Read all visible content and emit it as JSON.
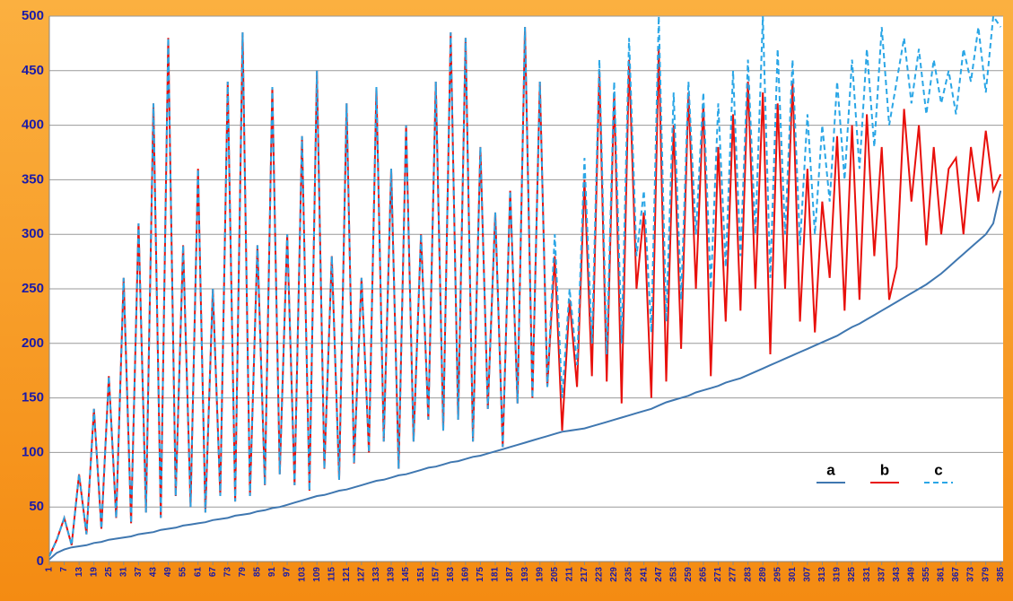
{
  "chart_data": {
    "type": "line",
    "x": [
      1,
      4,
      7,
      10,
      13,
      16,
      19,
      22,
      25,
      28,
      31,
      34,
      37,
      40,
      43,
      46,
      49,
      52,
      55,
      58,
      61,
      64,
      67,
      70,
      73,
      76,
      79,
      82,
      85,
      88,
      91,
      94,
      97,
      100,
      103,
      106,
      109,
      112,
      115,
      118,
      121,
      124,
      127,
      130,
      133,
      136,
      139,
      142,
      145,
      148,
      151,
      154,
      157,
      160,
      163,
      166,
      169,
      172,
      175,
      178,
      181,
      184,
      187,
      190,
      193,
      196,
      199,
      202,
      205,
      208,
      211,
      214,
      217,
      220,
      223,
      226,
      229,
      232,
      235,
      238,
      241,
      244,
      247,
      250,
      253,
      256,
      259,
      262,
      265,
      268,
      271,
      274,
      277,
      280,
      283,
      286,
      289,
      292,
      295,
      298,
      301,
      304,
      307,
      310,
      313,
      316,
      319,
      322,
      325,
      328,
      331,
      334,
      337,
      340,
      343,
      346,
      349,
      352,
      355,
      358,
      361,
      364,
      367,
      370,
      373,
      376,
      379,
      382,
      385
    ],
    "xlim": [
      1,
      386
    ],
    "xticks": [
      1,
      7,
      13,
      19,
      25,
      31,
      37,
      43,
      49,
      55,
      61,
      67,
      73,
      79,
      85,
      91,
      97,
      103,
      109,
      115,
      121,
      127,
      133,
      139,
      145,
      151,
      157,
      163,
      169,
      175,
      181,
      187,
      193,
      199,
      205,
      211,
      217,
      223,
      229,
      235,
      241,
      247,
      253,
      259,
      265,
      271,
      277,
      283,
      289,
      295,
      301,
      307,
      313,
      319,
      325,
      331,
      337,
      343,
      349,
      355,
      361,
      367,
      373,
      379,
      385
    ],
    "ylim": [
      0,
      500
    ],
    "yticks": [
      0,
      50,
      100,
      150,
      200,
      250,
      300,
      350,
      400,
      450,
      500
    ],
    "grid": true,
    "series": [
      {
        "name": "a",
        "color": "#3f77b0",
        "dash": false,
        "values": [
          2,
          8,
          11,
          13,
          14,
          15,
          17,
          18,
          20,
          21,
          22,
          23,
          25,
          26,
          27,
          29,
          30,
          31,
          33,
          34,
          35,
          36,
          38,
          39,
          40,
          42,
          43,
          44,
          46,
          47,
          49,
          50,
          52,
          54,
          56,
          58,
          60,
          61,
          63,
          65,
          66,
          68,
          70,
          72,
          74,
          75,
          77,
          79,
          80,
          82,
          84,
          86,
          87,
          89,
          91,
          92,
          94,
          96,
          97,
          99,
          101,
          103,
          105,
          107,
          109,
          111,
          113,
          115,
          117,
          119,
          120,
          121,
          122,
          124,
          126,
          128,
          130,
          132,
          134,
          136,
          138,
          140,
          143,
          146,
          148,
          150,
          152,
          155,
          157,
          159,
          161,
          164,
          166,
          168,
          171,
          174,
          177,
          180,
          183,
          186,
          189,
          192,
          195,
          198,
          201,
          204,
          207,
          211,
          215,
          218,
          222,
          226,
          230,
          234,
          238,
          242,
          246,
          250,
          254,
          259,
          264,
          270,
          276,
          282,
          288,
          294,
          300,
          310,
          340
        ]
      },
      {
        "name": "b",
        "color": "#e8100c",
        "dash": false,
        "values": [
          5,
          20,
          40,
          15,
          80,
          25,
          140,
          30,
          170,
          40,
          260,
          35,
          310,
          45,
          420,
          40,
          480,
          60,
          290,
          50,
          360,
          45,
          250,
          60,
          440,
          55,
          485,
          60,
          290,
          70,
          435,
          80,
          300,
          70,
          390,
          65,
          450,
          85,
          280,
          75,
          420,
          90,
          260,
          100,
          435,
          110,
          360,
          85,
          400,
          110,
          300,
          130,
          440,
          120,
          485,
          130,
          480,
          110,
          380,
          140,
          320,
          105,
          340,
          145,
          490,
          150,
          440,
          160,
          280,
          120,
          240,
          160,
          350,
          170,
          450,
          165,
          430,
          145,
          460,
          250,
          320,
          150,
          470,
          165,
          400,
          195,
          430,
          250,
          420,
          170,
          380,
          220,
          410,
          230,
          440,
          250,
          430,
          190,
          420,
          250,
          440,
          220,
          360,
          210,
          330,
          260,
          390,
          230,
          400,
          240,
          410,
          280,
          380,
          240,
          270,
          415,
          330,
          400,
          290,
          380,
          300,
          360,
          370,
          300,
          380,
          330,
          395,
          340,
          355
        ]
      },
      {
        "name": "c",
        "color": "#2aa6e6",
        "dash": true,
        "values": [
          5,
          20,
          40,
          15,
          80,
          25,
          140,
          30,
          170,
          40,
          260,
          35,
          310,
          45,
          420,
          40,
          480,
          60,
          290,
          50,
          360,
          45,
          250,
          60,
          440,
          55,
          485,
          60,
          290,
          70,
          435,
          80,
          300,
          70,
          390,
          65,
          450,
          85,
          280,
          75,
          420,
          90,
          260,
          100,
          435,
          110,
          360,
          85,
          400,
          110,
          300,
          130,
          440,
          120,
          485,
          130,
          480,
          110,
          380,
          140,
          320,
          105,
          340,
          145,
          490,
          150,
          440,
          160,
          300,
          150,
          250,
          180,
          370,
          200,
          460,
          190,
          440,
          200,
          480,
          280,
          340,
          210,
          500,
          220,
          430,
          240,
          440,
          300,
          430,
          250,
          420,
          270,
          450,
          280,
          460,
          300,
          500,
          260,
          470,
          300,
          460,
          290,
          410,
          300,
          400,
          330,
          440,
          350,
          460,
          360,
          470,
          380,
          490,
          400,
          440,
          480,
          420,
          470,
          410,
          460,
          420,
          450,
          410,
          470,
          440,
          490,
          430,
          500,
          490
        ]
      }
    ]
  }
}
